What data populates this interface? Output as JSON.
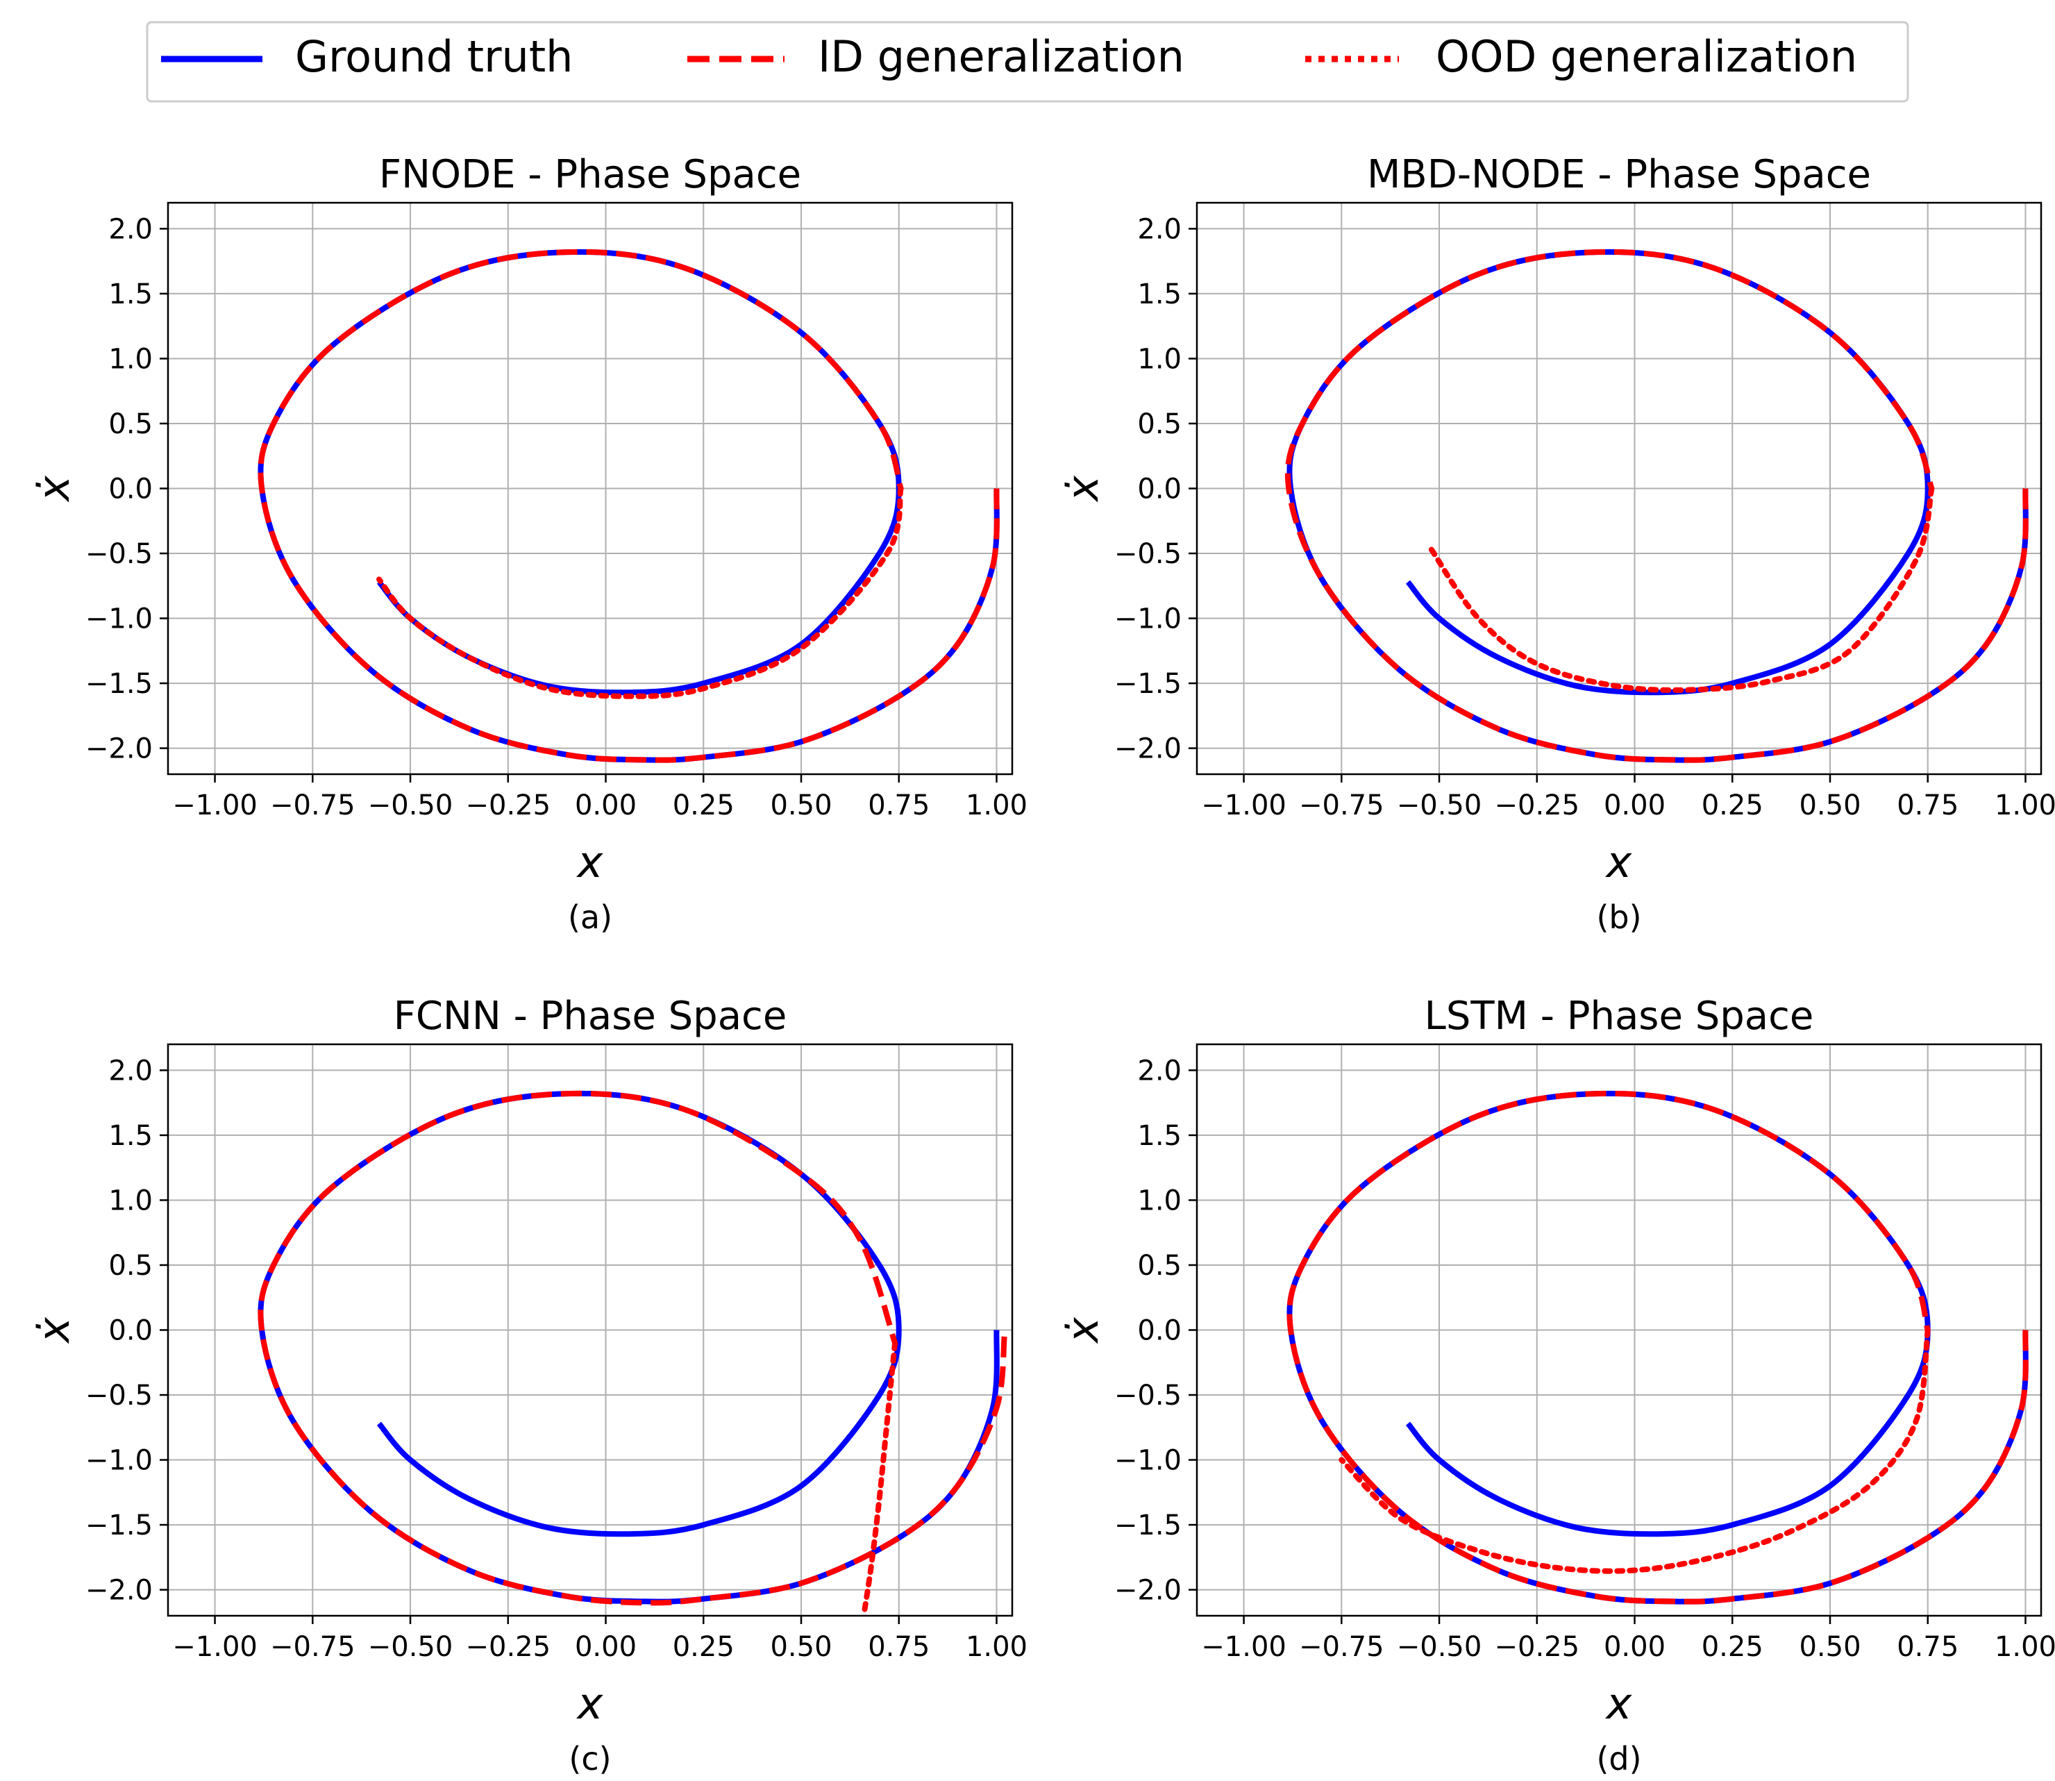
{
  "figure": {
    "legend": {
      "placement": "top-center",
      "entries": [
        {
          "label": "Ground truth",
          "color": "#0000ff",
          "style": "solid"
        },
        {
          "label": "ID generalization",
          "color": "#ff0000",
          "style": "dashed"
        },
        {
          "label": "OOD generalization",
          "color": "#ff0000",
          "style": "dotted"
        }
      ]
    }
  },
  "chart_data": [
    {
      "type": "line",
      "title": "FNODE - Phase Space",
      "xlabel": "x",
      "ylabel": "ẋ",
      "caption": "(a)",
      "xlim": [
        -1.12,
        1.04
      ],
      "ylim": [
        -2.2,
        2.2
      ],
      "xticks": [
        -1.0,
        -0.75,
        -0.5,
        -0.25,
        0.0,
        0.25,
        0.5,
        0.75,
        1.0
      ],
      "xtick_labels": [
        "−1.00",
        "−0.75",
        "−0.50",
        "−0.25",
        "0.00",
        "0.25",
        "0.50",
        "0.75",
        "1.00"
      ],
      "yticks": [
        -2.0,
        -1.5,
        -1.0,
        -0.5,
        0.0,
        0.5,
        1.0,
        1.5,
        2.0
      ],
      "ytick_labels": [
        "−2.0",
        "−1.5",
        "−1.0",
        "−0.5",
        "0.0",
        "0.5",
        "1.0",
        "1.5",
        "2.0"
      ],
      "grid": true,
      "series": [
        {
          "name": "Ground truth",
          "color": "#0000ff",
          "style": "solid",
          "x": [
            1.0,
            0.99,
            0.9,
            0.75,
            0.5,
            0.25,
            0.1,
            -0.1,
            -0.35,
            -0.6,
            -0.8,
            -0.88,
            -0.85,
            -0.7,
            -0.4,
            -0.1,
            0.2,
            0.5,
            0.7,
            0.75,
            0.7,
            0.5,
            0.25,
            0.06,
            -0.15,
            -0.35,
            -0.5,
            -0.58
          ],
          "y": [
            0.0,
            -0.6,
            -1.2,
            -1.6,
            -1.95,
            -2.07,
            -2.09,
            -2.05,
            -1.85,
            -1.4,
            -0.7,
            0.0,
            0.5,
            1.1,
            1.65,
            1.82,
            1.7,
            1.2,
            0.5,
            0.0,
            -0.5,
            -1.2,
            -1.5,
            -1.57,
            -1.52,
            -1.3,
            -1.0,
            -0.72
          ]
        },
        {
          "name": "ID generalization",
          "color": "#ff0000",
          "style": "dashed",
          "x": [
            1.0,
            0.99,
            0.9,
            0.75,
            0.5,
            0.25,
            0.1,
            -0.1,
            -0.35,
            -0.6,
            -0.8,
            -0.88,
            -0.85,
            -0.7,
            -0.4,
            -0.1,
            0.2,
            0.5,
            0.7,
            0.755
          ],
          "y": [
            0.0,
            -0.6,
            -1.2,
            -1.6,
            -1.95,
            -2.07,
            -2.09,
            -2.05,
            -1.85,
            -1.4,
            -0.7,
            0.0,
            0.5,
            1.1,
            1.65,
            1.82,
            1.7,
            1.2,
            0.5,
            0.0
          ]
        },
        {
          "name": "OOD generalization",
          "color": "#ff0000",
          "style": "dotted",
          "x": [
            0.755,
            0.72,
            0.5,
            0.25,
            0.06,
            -0.15,
            -0.35,
            -0.5,
            -0.58
          ],
          "y": [
            0.0,
            -0.5,
            -1.23,
            -1.54,
            -1.6,
            -1.54,
            -1.3,
            -1.0,
            -0.7
          ]
        }
      ]
    },
    {
      "type": "line",
      "title": "MBD-NODE - Phase Space",
      "xlabel": "x",
      "ylabel": "ẋ",
      "caption": "(b)",
      "xlim": [
        -1.12,
        1.04
      ],
      "ylim": [
        -2.2,
        2.2
      ],
      "xticks": [
        -1.0,
        -0.75,
        -0.5,
        -0.25,
        0.0,
        0.25,
        0.5,
        0.75,
        1.0
      ],
      "xtick_labels": [
        "−1.00",
        "−0.75",
        "−0.50",
        "−0.25",
        "0.00",
        "0.25",
        "0.50",
        "0.75",
        "1.00"
      ],
      "yticks": [
        -2.0,
        -1.5,
        -1.0,
        -0.5,
        0.0,
        0.5,
        1.0,
        1.5,
        2.0
      ],
      "ytick_labels": [
        "−2.0",
        "−1.5",
        "−1.0",
        "−0.5",
        "0.0",
        "0.5",
        "1.0",
        "1.5",
        "2.0"
      ],
      "grid": true,
      "series": [
        {
          "name": "Ground truth",
          "color": "#0000ff",
          "style": "solid",
          "x": [
            1.0,
            0.99,
            0.9,
            0.75,
            0.5,
            0.25,
            0.1,
            -0.1,
            -0.35,
            -0.6,
            -0.8,
            -0.88,
            -0.85,
            -0.7,
            -0.4,
            -0.1,
            0.2,
            0.5,
            0.7,
            0.75,
            0.7,
            0.5,
            0.25,
            0.06,
            -0.15,
            -0.35,
            -0.5,
            -0.58
          ],
          "y": [
            0.0,
            -0.6,
            -1.2,
            -1.6,
            -1.95,
            -2.07,
            -2.09,
            -2.05,
            -1.85,
            -1.4,
            -0.7,
            0.0,
            0.5,
            1.1,
            1.65,
            1.82,
            1.7,
            1.2,
            0.5,
            0.0,
            -0.5,
            -1.2,
            -1.5,
            -1.57,
            -1.52,
            -1.3,
            -1.0,
            -0.72
          ]
        },
        {
          "name": "ID generalization",
          "color": "#ff0000",
          "style": "dashed",
          "x": [
            1.0,
            0.99,
            0.9,
            0.75,
            0.5,
            0.25,
            0.1,
            -0.1,
            -0.35,
            -0.6,
            -0.8,
            -0.885,
            -0.85,
            -0.7,
            -0.4,
            -0.1,
            0.2,
            0.5,
            0.7,
            0.76
          ],
          "y": [
            0.0,
            -0.6,
            -1.2,
            -1.6,
            -1.95,
            -2.07,
            -2.09,
            -2.05,
            -1.85,
            -1.4,
            -0.7,
            0.0,
            0.5,
            1.1,
            1.65,
            1.82,
            1.7,
            1.2,
            0.5,
            0.0
          ]
        },
        {
          "name": "OOD generalization",
          "color": "#ff0000",
          "style": "dotted",
          "x": [
            0.76,
            0.72,
            0.55,
            0.35,
            0.15,
            -0.05,
            -0.25,
            -0.4,
            -0.52
          ],
          "y": [
            0.0,
            -0.55,
            -1.25,
            -1.48,
            -1.55,
            -1.52,
            -1.35,
            -1.0,
            -0.47
          ]
        }
      ]
    },
    {
      "type": "line",
      "title": "FCNN - Phase Space",
      "xlabel": "x",
      "ylabel": "ẋ",
      "caption": "(c)",
      "xlim": [
        -1.12,
        1.04
      ],
      "ylim": [
        -2.2,
        2.2
      ],
      "xticks": [
        -1.0,
        -0.75,
        -0.5,
        -0.25,
        0.0,
        0.25,
        0.5,
        0.75,
        1.0
      ],
      "xtick_labels": [
        "−1.00",
        "−0.75",
        "−0.50",
        "−0.25",
        "0.00",
        "0.25",
        "0.50",
        "0.75",
        "1.00"
      ],
      "yticks": [
        -2.0,
        -1.5,
        -1.0,
        -0.5,
        0.0,
        0.5,
        1.0,
        1.5,
        2.0
      ],
      "ytick_labels": [
        "−2.0",
        "−1.5",
        "−1.0",
        "−0.5",
        "0.0",
        "0.5",
        "1.0",
        "1.5",
        "2.0"
      ],
      "grid": true,
      "series": [
        {
          "name": "Ground truth",
          "color": "#0000ff",
          "style": "solid",
          "x": [
            1.0,
            0.99,
            0.9,
            0.75,
            0.5,
            0.25,
            0.1,
            -0.1,
            -0.35,
            -0.6,
            -0.8,
            -0.88,
            -0.85,
            -0.7,
            -0.4,
            -0.1,
            0.2,
            0.5,
            0.7,
            0.75,
            0.7,
            0.5,
            0.25,
            0.06,
            -0.15,
            -0.35,
            -0.5,
            -0.58
          ],
          "y": [
            0.0,
            -0.6,
            -1.2,
            -1.6,
            -1.95,
            -2.07,
            -2.09,
            -2.05,
            -1.85,
            -1.4,
            -0.7,
            0.0,
            0.5,
            1.1,
            1.65,
            1.82,
            1.7,
            1.2,
            0.5,
            0.0,
            -0.5,
            -1.2,
            -1.5,
            -1.57,
            -1.52,
            -1.3,
            -1.0,
            -0.72
          ]
        },
        {
          "name": "ID generalization",
          "color": "#ff0000",
          "style": "dashed",
          "x": [
            1.02,
            1.0,
            0.9,
            0.75,
            0.5,
            0.25,
            0.1,
            -0.1,
            -0.35,
            -0.6,
            -0.8,
            -0.88,
            -0.85,
            -0.7,
            -0.4,
            -0.1,
            0.2,
            0.5,
            0.65,
            0.74
          ],
          "y": [
            -0.05,
            -0.6,
            -1.2,
            -1.6,
            -1.95,
            -2.07,
            -2.1,
            -2.05,
            -1.85,
            -1.4,
            -0.7,
            0.0,
            0.5,
            1.1,
            1.65,
            1.82,
            1.7,
            1.2,
            0.7,
            -0.1
          ]
        },
        {
          "name": "OOD generalization",
          "color": "#ff0000",
          "style": "dotted",
          "x": [
            0.74,
            0.72,
            0.7,
            0.68,
            0.66
          ],
          "y": [
            -0.1,
            -0.7,
            -1.3,
            -1.8,
            -2.2
          ]
        }
      ]
    },
    {
      "type": "line",
      "title": "LSTM - Phase Space",
      "xlabel": "x",
      "ylabel": "ẋ",
      "caption": "(d)",
      "xlim": [
        -1.12,
        1.04
      ],
      "ylim": [
        -2.2,
        2.2
      ],
      "xticks": [
        -1.0,
        -0.75,
        -0.5,
        -0.25,
        0.0,
        0.25,
        0.5,
        0.75,
        1.0
      ],
      "xtick_labels": [
        "−1.00",
        "−0.75",
        "−0.50",
        "−0.25",
        "0.00",
        "0.25",
        "0.50",
        "0.75",
        "1.00"
      ],
      "yticks": [
        -2.0,
        -1.5,
        -1.0,
        -0.5,
        0.0,
        0.5,
        1.0,
        1.5,
        2.0
      ],
      "ytick_labels": [
        "−2.0",
        "−1.5",
        "−1.0",
        "−0.5",
        "0.0",
        "0.5",
        "1.0",
        "1.5",
        "2.0"
      ],
      "grid": true,
      "series": [
        {
          "name": "Ground truth",
          "color": "#0000ff",
          "style": "solid",
          "x": [
            1.0,
            0.99,
            0.9,
            0.75,
            0.5,
            0.25,
            0.1,
            -0.1,
            -0.35,
            -0.6,
            -0.8,
            -0.88,
            -0.85,
            -0.7,
            -0.4,
            -0.1,
            0.2,
            0.5,
            0.7,
            0.75,
            0.7,
            0.5,
            0.25,
            0.06,
            -0.15,
            -0.35,
            -0.5,
            -0.58
          ],
          "y": [
            0.0,
            -0.6,
            -1.2,
            -1.6,
            -1.95,
            -2.07,
            -2.09,
            -2.05,
            -1.85,
            -1.4,
            -0.7,
            0.0,
            0.5,
            1.1,
            1.65,
            1.82,
            1.7,
            1.2,
            0.5,
            0.0,
            -0.5,
            -1.2,
            -1.5,
            -1.57,
            -1.52,
            -1.3,
            -1.0,
            -0.72
          ]
        },
        {
          "name": "ID generalization",
          "color": "#ff0000",
          "style": "dashed",
          "x": [
            1.0,
            0.99,
            0.9,
            0.75,
            0.5,
            0.25,
            0.1,
            -0.1,
            -0.35,
            -0.6,
            -0.8,
            -0.88,
            -0.85,
            -0.7,
            -0.4,
            -0.1,
            0.2,
            0.5,
            0.7,
            0.75
          ],
          "y": [
            0.0,
            -0.6,
            -1.2,
            -1.6,
            -1.95,
            -2.07,
            -2.09,
            -2.05,
            -1.85,
            -1.4,
            -0.7,
            0.0,
            0.5,
            1.1,
            1.65,
            1.82,
            1.7,
            1.2,
            0.5,
            0.0
          ]
        },
        {
          "name": "OOD generalization",
          "color": "#ff0000",
          "style": "dotted",
          "x": [
            0.75,
            0.72,
            0.6,
            0.4,
            0.2,
            0.0,
            -0.2,
            -0.4,
            -0.6,
            -0.75
          ],
          "y": [
            0.0,
            -0.7,
            -1.2,
            -1.55,
            -1.75,
            -1.85,
            -1.83,
            -1.7,
            -1.45,
            -1.0
          ]
        }
      ]
    }
  ]
}
